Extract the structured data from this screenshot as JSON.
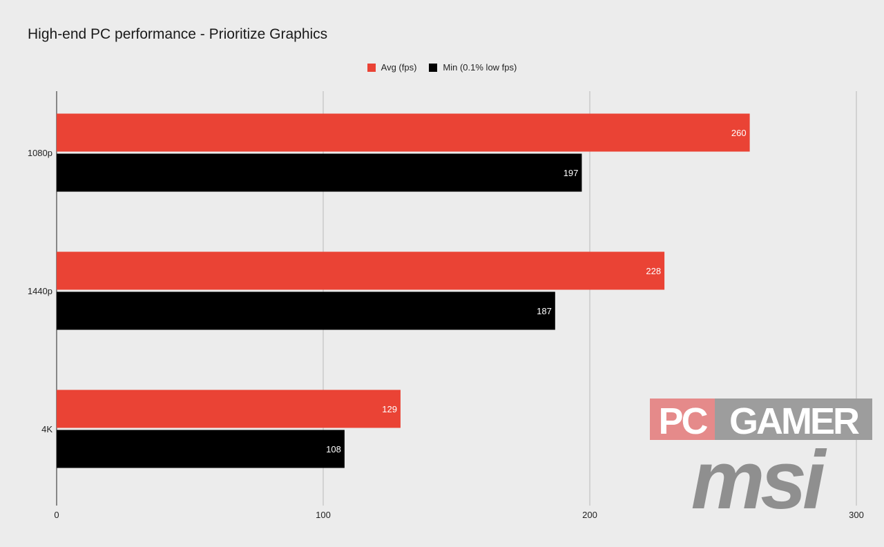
{
  "chart_data": {
    "type": "bar",
    "orientation": "horizontal",
    "title": "High-end PC performance - Prioritize Graphics",
    "categories": [
      "1080p",
      "1440p",
      "4K"
    ],
    "series": [
      {
        "name": "Avg (fps)",
        "color": "#ea4335",
        "values": [
          260,
          228,
          129
        ]
      },
      {
        "name": "Min (0.1% low fps)",
        "color": "#000000",
        "values": [
          197,
          187,
          108
        ]
      }
    ],
    "xlim": [
      0,
      300
    ],
    "xticks": [
      0,
      100,
      200,
      300
    ],
    "grid": true,
    "legend_position": "top-center",
    "data_labels": true
  },
  "watermark": {
    "brand_top": "PC GAMER",
    "brand_top_left": "PC",
    "brand_top_right": "GAMER",
    "brand_bottom": "msi"
  }
}
